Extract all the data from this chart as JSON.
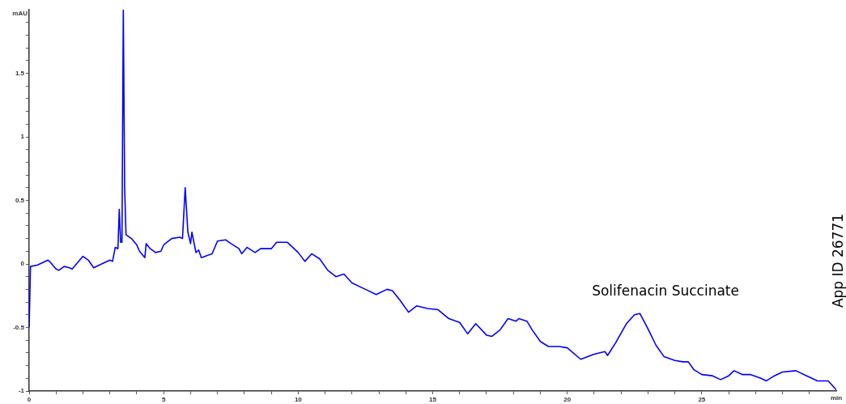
{
  "chart_data": {
    "type": "line",
    "xlabel": "min",
    "ylabel": "mAU",
    "xlim": [
      0,
      30
    ],
    "ylim": [
      -1,
      2
    ],
    "xticks": [
      0,
      {
        "value": 1,
        "label": null
      },
      {
        "value": 2,
        "label": null
      },
      {
        "value": 3,
        "label": null
      },
      {
        "value": 4,
        "label": null
      },
      5,
      {
        "value": 6,
        "label": null
      },
      {
        "value": 7,
        "label": null
      },
      {
        "value": 8,
        "label": null
      },
      {
        "value": 9,
        "label": null
      },
      10,
      {
        "value": 11,
        "label": null
      },
      {
        "value": 12,
        "label": null
      },
      {
        "value": 13,
        "label": null
      },
      {
        "value": 14,
        "label": null
      },
      15,
      {
        "value": 16,
        "label": null
      },
      {
        "value": 17,
        "label": null
      },
      {
        "value": 18,
        "label": null
      },
      {
        "value": 19,
        "label": null
      },
      20,
      {
        "value": 21,
        "label": null
      },
      {
        "value": 22,
        "label": null
      },
      {
        "value": 23,
        "label": null
      },
      {
        "value": 24,
        "label": null
      },
      25,
      {
        "value": 26,
        "label": null
      },
      {
        "value": 27,
        "label": null
      },
      {
        "value": 28,
        "label": null
      },
      {
        "value": 29,
        "label": null
      }
    ],
    "yticks": [
      -1,
      {
        "value": -0.9,
        "label": null
      },
      {
        "value": -0.8,
        "label": null
      },
      {
        "value": -0.7,
        "label": null
      },
      {
        "value": -0.6,
        "label": null
      },
      -0.5,
      {
        "value": -0.4,
        "label": null
      },
      {
        "value": -0.3,
        "label": null
      },
      {
        "value": -0.2,
        "label": null
      },
      {
        "value": -0.1,
        "label": null
      },
      0,
      {
        "value": 0.1,
        "label": null
      },
      {
        "value": 0.2,
        "label": null
      },
      {
        "value": 0.3,
        "label": null
      },
      {
        "value": 0.4,
        "label": null
      },
      0.5,
      {
        "value": 0.6,
        "label": null
      },
      {
        "value": 0.7,
        "label": null
      },
      {
        "value": 0.8,
        "label": null
      },
      {
        "value": 0.9,
        "label": null
      },
      1,
      {
        "value": 1.1,
        "label": null
      },
      {
        "value": 1.2,
        "label": null
      },
      {
        "value": 1.3,
        "label": null
      },
      {
        "value": 1.4,
        "label": null
      },
      1.5,
      {
        "value": 1.6,
        "label": null
      },
      {
        "value": 1.7,
        "label": null
      },
      {
        "value": 1.8,
        "label": null
      },
      {
        "value": 1.9,
        "label": null
      }
    ],
    "grid": false,
    "legend": false,
    "marker": "none",
    "line_style": "solid",
    "series": [
      {
        "color": "#0000ff",
        "x": [
          0,
          0.05,
          0.3,
          0.7,
          0.8,
          1.0,
          1.1,
          1.3,
          1.5,
          1.6,
          2.0,
          2.2,
          2.4,
          2.6,
          3.0,
          3.1,
          3.2,
          3.3,
          3.35,
          3.4,
          3.45,
          3.5,
          3.55,
          3.6,
          3.8,
          4.0,
          4.1,
          4.3,
          4.35,
          4.5,
          4.7,
          4.9,
          5.0,
          5.3,
          5.6,
          5.7,
          5.8,
          5.9,
          6.0,
          6.05,
          6.2,
          6.3,
          6.4,
          6.8,
          7.0,
          7.3,
          7.5,
          7.8,
          7.9,
          8.1,
          8.4,
          8.6,
          9.0,
          9.2,
          9.6,
          10.0,
          10.25,
          10.5,
          10.8,
          11.1,
          11.4,
          11.7,
          12.0,
          12.5,
          12.9,
          13.3,
          13.5,
          13.8,
          14.1,
          14.4,
          14.8,
          15.2,
          15.6,
          16.0,
          16.3,
          16.6,
          17.0,
          17.2,
          17.5,
          17.8,
          18.1,
          18.2,
          18.5,
          18.7,
          19.0,
          19.3,
          19.7,
          20.0,
          20.5,
          21.0,
          21.4,
          21.5,
          21.8,
          22.2,
          22.5,
          22.7,
          23.0,
          23.3,
          23.6,
          24.0,
          24.3,
          24.5,
          24.7,
          25.0,
          25.4,
          25.7,
          26.0,
          26.2,
          26.5,
          26.8,
          27.2,
          27.4,
          27.7,
          28.0,
          28.5,
          28.9,
          29.3,
          29.7,
          30.0
        ],
        "values": [
          -0.5,
          -0.02,
          -0.01,
          0.03,
          0.01,
          -0.04,
          -0.05,
          -0.02,
          -0.03,
          -0.04,
          0.06,
          0.03,
          -0.03,
          -0.01,
          0.03,
          0.02,
          0.13,
          0.12,
          0.43,
          0.17,
          0.17,
          2.0,
          0.6,
          0.23,
          0.2,
          0.15,
          0.1,
          0.05,
          0.16,
          0.12,
          0.09,
          0.1,
          0.15,
          0.2,
          0.21,
          0.2,
          0.6,
          0.25,
          0.16,
          0.25,
          0.09,
          0.11,
          0.05,
          0.08,
          0.18,
          0.19,
          0.16,
          0.12,
          0.08,
          0.13,
          0.09,
          0.12,
          0.12,
          0.17,
          0.17,
          0.09,
          0.02,
          0.08,
          0.04,
          -0.05,
          -0.1,
          -0.08,
          -0.15,
          -0.2,
          -0.24,
          -0.2,
          -0.21,
          -0.29,
          -0.38,
          -0.33,
          -0.35,
          -0.36,
          -0.43,
          -0.46,
          -0.55,
          -0.47,
          -0.56,
          -0.57,
          -0.52,
          -0.43,
          -0.45,
          -0.43,
          -0.45,
          -0.52,
          -0.61,
          -0.65,
          -0.65,
          -0.66,
          -0.75,
          -0.71,
          -0.69,
          -0.72,
          -0.62,
          -0.47,
          -0.4,
          -0.39,
          -0.51,
          -0.64,
          -0.73,
          -0.76,
          -0.77,
          -0.77,
          -0.83,
          -0.87,
          -0.88,
          -0.91,
          -0.88,
          -0.84,
          -0.87,
          -0.87,
          -0.9,
          -0.92,
          -0.88,
          -0.85,
          -0.84,
          -0.88,
          -0.92,
          -0.92,
          -0.99
        ]
      }
    ],
    "annotations": [
      {
        "text": "Solifenacin Succinate",
        "x": 22.6,
        "y": -0.39
      },
      "App ID 26771"
    ]
  }
}
